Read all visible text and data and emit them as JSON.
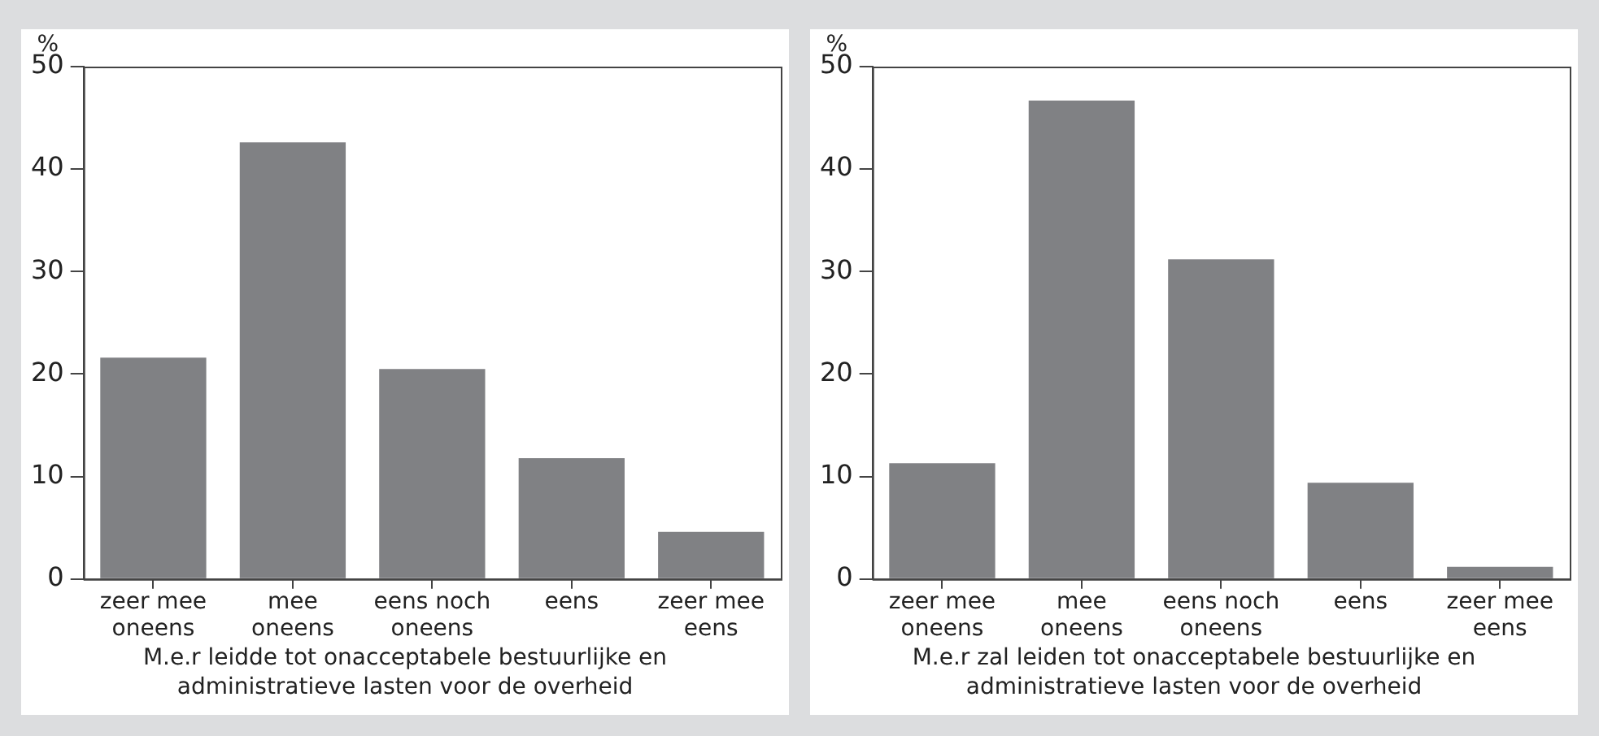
{
  "chart_data": [
    {
      "type": "bar",
      "xlabel": "M.e.r leidde tot onacceptabele bestuurlijke en administratieve lasten voor de overheid",
      "ylabel": "%",
      "categories": [
        "zeer mee oneens",
        "mee oneens",
        "eens noch oneens",
        "eens",
        "zeer mee eens"
      ],
      "values": [
        21.6,
        42.6,
        20.5,
        11.8,
        4.6
      ],
      "color": "#808184",
      "ylim": [
        0,
        50
      ],
      "yticks": [
        0,
        10,
        20,
        30,
        40,
        50
      ]
    },
    {
      "type": "bar",
      "xlabel": "M.e.r zal leiden tot onacceptabele bestuurlijke en administratieve lasten voor de overheid",
      "ylabel": "%",
      "categories": [
        "zeer mee oneens",
        "mee oneens",
        "eens noch oneens",
        "eens",
        "zeer mee eens"
      ],
      "values": [
        11.3,
        46.7,
        31.2,
        9.4,
        1.2
      ],
      "color": "#808184",
      "ylim": [
        0,
        50
      ],
      "yticks": [
        0,
        10,
        20,
        30,
        40,
        50
      ]
    }
  ]
}
